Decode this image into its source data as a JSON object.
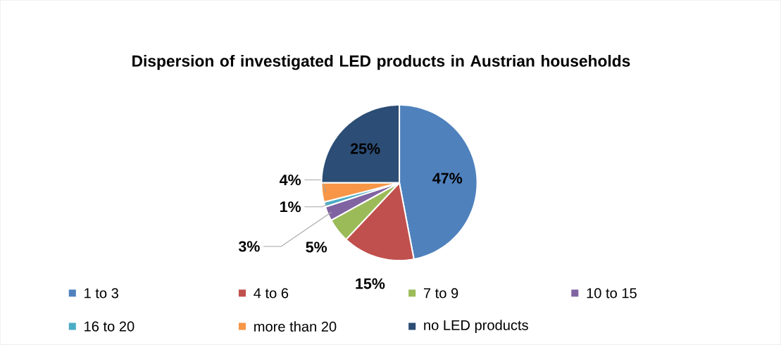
{
  "chart_data": {
    "type": "pie",
    "title": "Dispersion of investigated LED products in Austrian households",
    "categories": [
      "1 to 3",
      "4 to 6",
      "7 to 9",
      "10 to 15",
      "16 to 20",
      "more than 20",
      "no LED products"
    ],
    "values": [
      47,
      15,
      5,
      3,
      1,
      4,
      25
    ],
    "value_labels": [
      "47%",
      "15%",
      "5%",
      "3%",
      "1%",
      "4%",
      "25%"
    ],
    "colors": [
      "#4f81bd",
      "#c0504d",
      "#9bbb59",
      "#8064a2",
      "#4bacc6",
      "#f79646",
      "#2c4d75"
    ],
    "legend": "bottom"
  }
}
